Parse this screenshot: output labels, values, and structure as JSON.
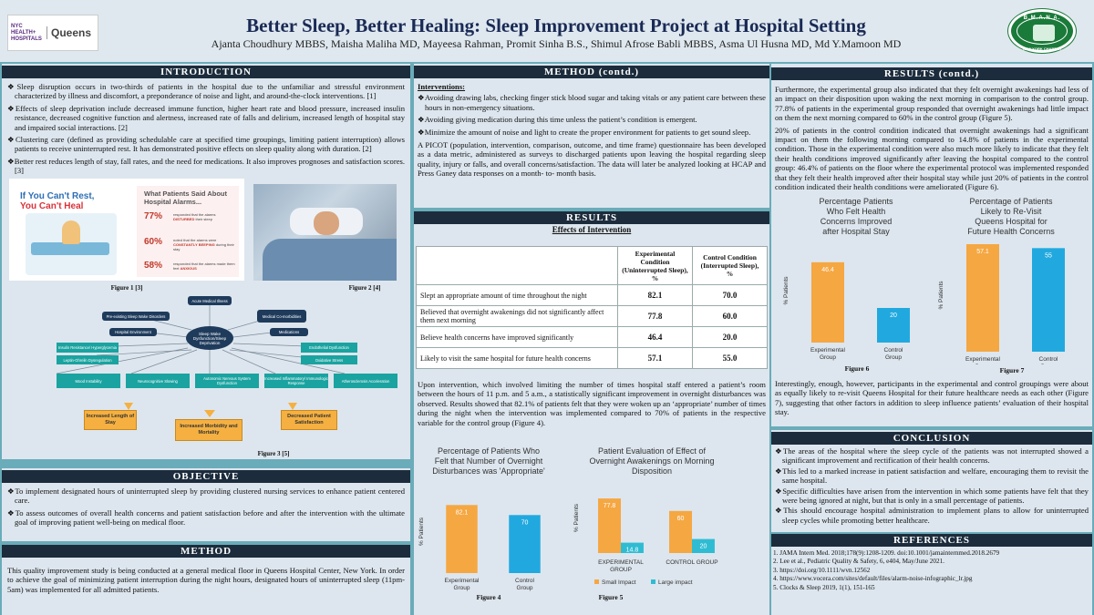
{
  "header": {
    "logo_left_top": "NYC HEALTH+ HOSPITALS",
    "logo_left_name": "Queens",
    "title": "Better Sleep, Better Healing: Sleep Improvement Project at Hospital Setting",
    "authors": "Ajanta Choudhury MBBS, Maisha Maliha MD, Mayeesa Rahman, Promit Sinha B.S., Shimul Afrose Babli MBBS, Asma Ul Husna MD, Md Y.Mamoon MD",
    "seal_top": "B.M.A.N.A.",
    "seal_bottom": "NEW YORK CHAPTER"
  },
  "introduction": {
    "heading": "INTRODUCTION",
    "bullets": [
      "Sleep disruption occurs in two-thirds of patients in the hospital due to the unfamiliar and stressful environment characterized by illness and discomfort, a preponderance of noise and light, and around-the-clock interventions. [1]",
      "Effects of sleep deprivation include decreased immune function, higher heart rate and blood pressure, increased insulin resistance, decreased cognitive function and alertness, increased rate of falls and delirium, increased length of hospital stay and impaired social interactions. [2]",
      "Clustering care (defined as providing schedulable care at specified time groupings, limiting patient interruption) allows patients to receive uninterrupted rest. It has demonstrated positive effects on sleep quality along with duration. [2]",
      "Better rest reduces length of stay, fall rates, and the need for medications. It also improves prognoses and satisfaction scores. [3]"
    ],
    "figure1": {
      "line1": "If You Can't Rest,",
      "line2": "You Can't Heal",
      "right_title": "What Patients Said About Hospital Alarms...",
      "stats": [
        {
          "pct": "77%",
          "pre": "responded that the alarms",
          "key": "DISTURBED",
          "post": "their sleep"
        },
        {
          "pct": "60%",
          "pre": "noted that the alarms were",
          "key": "CONSTANTLY BEEPING",
          "post": "during their stay"
        },
        {
          "pct": "58%",
          "pre": "responded that the alarms made them feel",
          "key": "ANXIOUS",
          "post": ""
        }
      ],
      "caption": "Figure 1 [3]"
    },
    "figure2_caption": "Figure 2 [4]",
    "figure3": {
      "caption": "Figure 3 [5]",
      "center": "Sleep Wake Dysfunction/Sleep Deprivation",
      "top_nodes": [
        "Acute Medical Illness",
        "Pre-existing Sleep Wake Disorders",
        "Medical Co-morbidities",
        "Hospital Environment",
        "Medications"
      ],
      "left_teal": [
        "Insulin Resistance/ Hyperglycemia",
        "Leptin-Ghrelin Dysregulation"
      ],
      "right_teal": [
        "Endothelial Dysfunction",
        "Oxidative Stress"
      ],
      "bottom_teal": [
        "Mood Instability",
        "Neurocognitive Slowing",
        "Autonomic Nervous System Dysfunction",
        "Increased Inflammatory/ Immunologic Response",
        "Atherosclerosis Acceleration"
      ],
      "outcomes": [
        "Increased Length of Stay",
        "Increased Morbidity and Mortality",
        "Decreased Patient Satisfaction"
      ]
    }
  },
  "objective": {
    "heading": "OBJECTIVE",
    "bullets": [
      "To implement designated hours of uninterrupted sleep by providing clustered nursing services to enhance patient centered care.",
      "To assess outcomes of overall health concerns and patient satisfaction before and after the intervention with the ultimate goal of improving patient well-being on medical floor."
    ]
  },
  "method": {
    "heading": "METHOD",
    "text": "This quality improvement study is being conducted at a general medical floor in Queens Hospital Center, New York. In order to achieve the goal of minimizing patient interruption during the night hours, designated hours of uninterrupted sleep (11pm-5am) was implemented for all admitted patients."
  },
  "method_contd": {
    "heading": "METHOD (contd.)",
    "interventions_label": "Interventions:",
    "bullets": [
      "Avoiding drawing labs, checking finger stick blood sugar and taking vitals or any patient care between these hours in non-emergency situations.",
      "Avoiding giving medication during this time unless the patient’s condition is emergent.",
      "Minimize the amount of noise and light to create the proper environment for patients to get sound sleep."
    ],
    "picot": "A PICOT (population, intervention, comparison, outcome, and time frame) questionnaire has been developed as a data metric, administered as surveys to discharged patients upon leaving the hospital regarding sleep quality, injury or falls, and overall concerns/satisfaction. The data will later be analyzed looking at HCAP and Press Ganey data responses on a month- to- month basis."
  },
  "results": {
    "heading": "RESULTS",
    "table_title": "Effects of Intervention",
    "col_exp": "Experimental Condition (Uninterrupted Sleep), %",
    "col_ctrl": "Control Condition (Interrupted Sleep), %",
    "rows": [
      {
        "label": "Slept an appropriate amount of time throughout the night",
        "exp": "82.1",
        "ctrl": "70.0"
      },
      {
        "label": "Believed that overnight awakenings did not significantly affect them next morning",
        "exp": "77.8",
        "ctrl": "60.0"
      },
      {
        "label": "Believe health concerns have improved significantly",
        "exp": "46.4",
        "ctrl": "20.0"
      },
      {
        "label": "Likely to visit the same hospital for future health concerns",
        "exp": "57.1",
        "ctrl": "55.0"
      }
    ],
    "text": "Upon intervention, which involved limiting the number of times hospital staff entered a patient’s room between the hours of 11 p.m. and 5 a.m., a statistically significant improvement in overnight disturbances was observed. Results showed that 82.1% of patients felt that they were woken up an ‘appropriate’ number of times during the night when the intervention was implemented compared to 70% of patients in the respective variable for the control group (Figure 4).",
    "figure4_caption": "Figure 4",
    "figure5_caption": "Figure 5"
  },
  "results_contd": {
    "heading": "RESULTS (contd.)",
    "p1": "Furthermore, the experimental group also indicated that they felt overnight awakenings had less of an impact on their disposition upon waking the next morning in comparison to the control group. 77.8% of patients in the experimental group responded that overnight awakenings had little impact on them the next morning compared to 60% in the control group (Figure 5).",
    "p2": "20% of patients in the control condition indicated that overnight awakenings had a significant impact on them the following morning compared to 14.8% of patients in the experimental condition. Those in the experimental condition were also much more likely to indicate that they felt their health conditions improved significantly after leaving the hospital compared to the control group: 46.4% of patients on the floor where the experimental protocol was implemented responded that they felt their health improved after their hospital stay while just 20% of patients in the control condition indicated their health conditions were ameliorated (Figure 6).",
    "p3": "Interestingly, enough, however, participants in the experimental and control groupings were about as equally likely to re-visit Queens Hospital for their future healthcare needs as each other (Figure 7), suggesting that other factors in addition to sleep  influence patients’ evaluation of their hospital stay.",
    "figure6_caption": "Figure 6",
    "figure7_caption": "Figure 7"
  },
  "conclusion": {
    "heading": "CONCLUSION",
    "bullets": [
      "The areas of the hospital where the sleep cycle of the patients was not interrupted showed a significant improvement and rectification of their health concerns.",
      "This led to a marked increase in patient satisfaction and welfare, encouraging them to revisit the same hospital.",
      "Specific difficulties have arisen from the intervention in which some patients have felt that they were being ignored at night, but that is only in a small percentage of patients.",
      "This should encourage hospital administration to implement plans to allow for uninterrupted sleep cycles while promoting better healthcare."
    ]
  },
  "references": {
    "heading": "REFERENCES",
    "items": [
      "1. JAMA Intern Med. 2018;178(9):1208-1209. doi:10.1001/jamainternmed.2018.2679",
      "2. Lee et al., Pediatric Quality & Safety, 6, e404, May/June 2021.",
      "3. https://doi.org/10.1111/wvn.12562",
      "4. https://www.vocera.com/sites/default/files/alarm-noise-infographic_lr.jpg",
      "5. Clocks & Sleep 2019, 1(1), 151-165"
    ]
  },
  "colors": {
    "experimental": "#f5a742",
    "control": "#21a9df",
    "large_impact": "#2fbcd3"
  },
  "chart_data": [
    {
      "id": "fig4",
      "type": "bar",
      "title": "Percentage of Patients Who Felt that Number of Overnight Disturbances was 'Appropriate'",
      "ylabel": "% Patients",
      "ylim": [
        0,
        100
      ],
      "categories": [
        "Experimental Group",
        "Control Group"
      ],
      "values": [
        82.1,
        70
      ],
      "value_labels": [
        "82.1",
        "70"
      ]
    },
    {
      "id": "fig5",
      "type": "bar",
      "title": "Patient Evaluation of Effect of Overnight Awakenings on Morning Disposition",
      "ylabel": "% Patients",
      "ylim": [
        0,
        100
      ],
      "categories": [
        "EXPERIMENTAL GROUP",
        "CONTROL GROUP"
      ],
      "series": [
        {
          "name": "Small Impact",
          "values": [
            77.8,
            60
          ],
          "labels": [
            "77.8",
            "60"
          ]
        },
        {
          "name": "Large impact",
          "values": [
            14.8,
            20
          ],
          "labels": [
            "14.8",
            "20"
          ]
        }
      ]
    },
    {
      "id": "fig6",
      "type": "bar",
      "title": "Percentage Patients Who Felt Health Concerns Improved after Hospital Stay",
      "ylabel": "% Patients",
      "ylim": [
        0,
        60
      ],
      "categories": [
        "Experimental Group",
        "Control Group"
      ],
      "values": [
        46.4,
        20
      ],
      "value_labels": [
        "46.4",
        "20"
      ]
    },
    {
      "id": "fig7",
      "type": "bar",
      "title": "Percentage of Patients Likely to Re-Visit Queens Hospital for Future Health Concerns",
      "ylabel": "% Patients",
      "ylim": [
        0,
        60
      ],
      "categories": [
        "Experimental Group",
        "Control Group"
      ],
      "values": [
        57.1,
        55
      ],
      "value_labels": [
        "57.1",
        "55"
      ]
    }
  ]
}
